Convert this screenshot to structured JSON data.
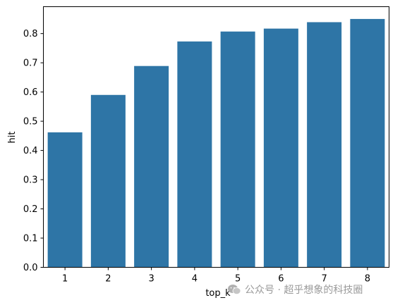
{
  "chart_data": {
    "type": "bar",
    "categories": [
      "1",
      "2",
      "3",
      "4",
      "5",
      "6",
      "7",
      "8"
    ],
    "values": [
      0.462,
      0.59,
      0.689,
      0.773,
      0.807,
      0.817,
      0.839,
      0.85
    ],
    "xlabel": "top_k",
    "ylabel": "hit",
    "ylim": [
      0,
      0.892
    ],
    "yticks": [
      0.0,
      0.1,
      0.2,
      0.3,
      0.4,
      0.5,
      0.6,
      0.7,
      0.8
    ],
    "ytick_labels": [
      "0.0",
      "0.1",
      "0.2",
      "0.3",
      "0.4",
      "0.5",
      "0.6",
      "0.7",
      "0.8"
    ],
    "grid": false,
    "bar_color": "#2e75a6"
  },
  "watermark": {
    "text": "公众号 · 超乎想象的科技圈",
    "icon": "wechat-icon",
    "color": "#9a9a9a"
  }
}
